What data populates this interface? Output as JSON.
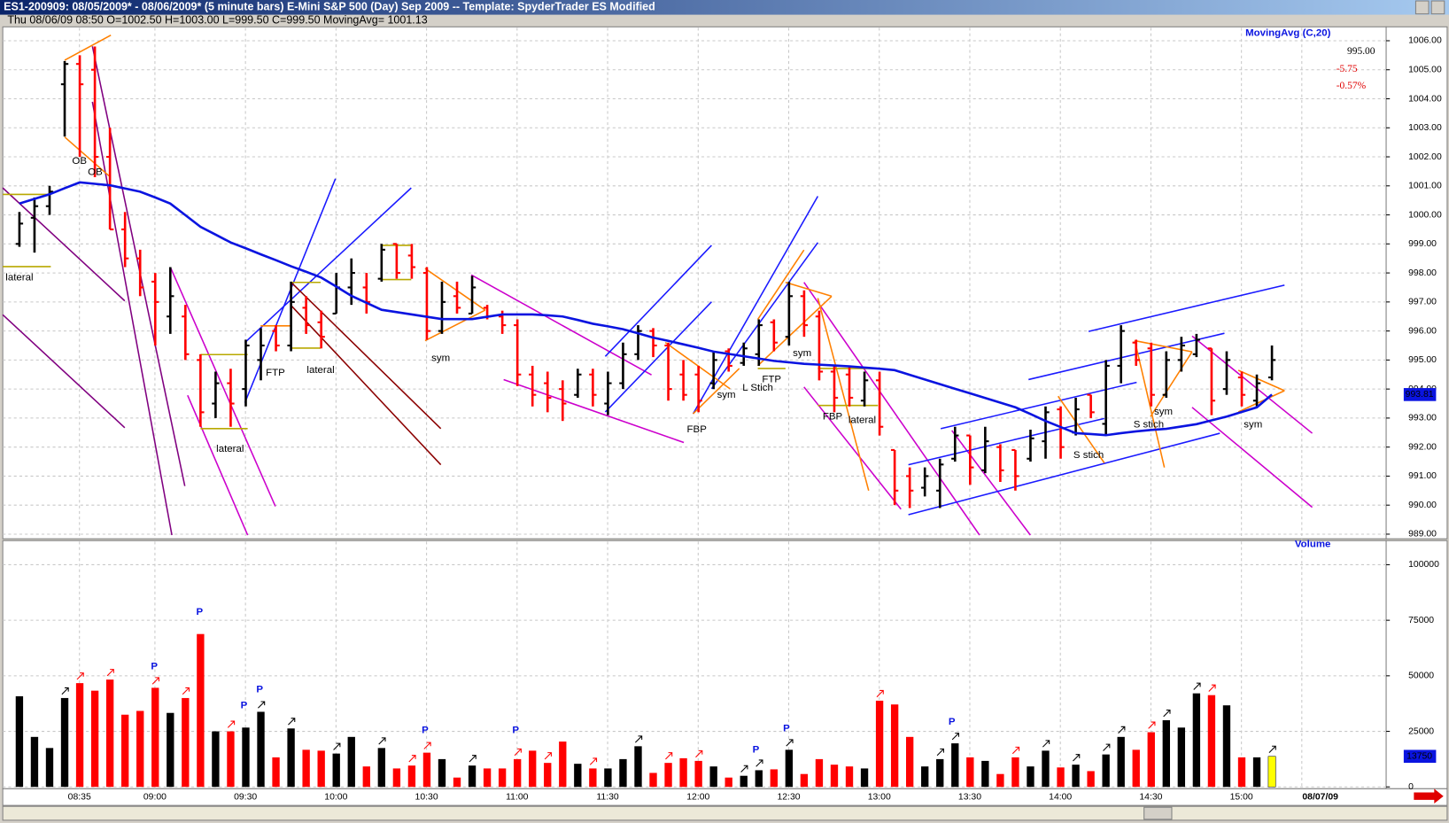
{
  "chart_data": [
    {
      "type": "ohlc",
      "title": "ES1-200909:  08/05/2009* - 08/06/2009*  (5 minute bars)   E-Mini S&P 500 (Day) Sep 2009  --  Template: SpyderTrader ES Modified",
      "subtitle": "Thu  08/06/09 08:50  O=1002.50  H=1003.00  L=999.50  C=999.50  MovingAvg= 1001.13",
      "categories": [
        null,
        null,
        null,
        "08:35",
        null,
        null,
        null,
        null,
        "09:00",
        null,
        null,
        null,
        null,
        null,
        "09:30",
        null,
        null,
        null,
        null,
        null,
        "10:00",
        null,
        null,
        null,
        null,
        null,
        "10:30",
        null,
        null,
        null,
        null,
        null,
        "11:00",
        null,
        null,
        null,
        null,
        null,
        "11:30",
        null,
        null,
        null,
        null,
        null,
        "12:00",
        null,
        null,
        null,
        null,
        null,
        "12:30",
        null,
        null,
        null,
        null,
        null,
        "13:00",
        null,
        null,
        null,
        null,
        null,
        "13:30",
        null,
        null,
        null,
        null,
        null,
        "14:00",
        null,
        null,
        null,
        null,
        null,
        "14:30",
        null,
        null,
        null,
        null,
        null,
        "15:00",
        null,
        null,
        null
      ],
      "open": [
        999.0,
        999.9,
        1000.3,
        1004.5,
        1005.2,
        1005.0,
        1002.0,
        999.5,
        998.5,
        997.7,
        996.5,
        996.5,
        995.0,
        993.5,
        994.2,
        994.0,
        995.0,
        996.0,
        995.5,
        996.8,
        996.3,
        996.6,
        997.5,
        997.5,
        997.8,
        999.0,
        998.6,
        998.0,
        996.0,
        997.2,
        996.6,
        996.8,
        996.5,
        996.2,
        994.5,
        994.2,
        994.0,
        993.8,
        994.5,
        993.5,
        994.2,
        995.2,
        996.0,
        995.5,
        994.5,
        994.5,
        994.2,
        995.3,
        994.9,
        995.2,
        996.3,
        995.8,
        997.2,
        996.5,
        994.6,
        994.5,
        993.6,
        994.3,
        991.9,
        991.0,
        990.6,
        990.5,
        991.6,
        992.4,
        991.2,
        992.0,
        991.9,
        991.6,
        992.2,
        993.3,
        992.5,
        993.8,
        992.8,
        994.8,
        995.6,
        995.4,
        993.8,
        995.0,
        995.2,
        995.4,
        994.0,
        994.4,
        993.6,
        994.4
      ],
      "high": [
        1000.1,
        1000.6,
        1001.0,
        1005.3,
        1005.5,
        1005.8,
        1003.0,
        1000.1,
        998.8,
        998.0,
        998.2,
        996.9,
        995.2,
        994.6,
        994.7,
        995.7,
        996.1,
        996.2,
        997.7,
        997.2,
        996.7,
        998.0,
        998.5,
        998.0,
        999.0,
        999.0,
        999.0,
        998.2,
        997.7,
        997.7,
        997.9,
        996.9,
        996.7,
        996.4,
        994.8,
        994.6,
        994.3,
        994.7,
        994.7,
        994.6,
        995.6,
        996.2,
        996.1,
        995.6,
        995.0,
        994.8,
        995.3,
        995.4,
        995.6,
        996.4,
        996.4,
        997.7,
        997.4,
        996.7,
        994.8,
        994.8,
        994.6,
        994.6,
        991.9,
        991.3,
        991.3,
        991.6,
        992.7,
        992.4,
        992.7,
        992.1,
        991.9,
        992.6,
        993.4,
        993.4,
        993.7,
        993.8,
        995.0,
        996.2,
        995.7,
        995.6,
        995.3,
        995.8,
        995.9,
        995.4,
        995.3,
        994.6,
        994.5,
        995.5
      ],
      "low": [
        998.9,
        998.7,
        1000.0,
        1002.7,
        1002.0,
        1001.3,
        999.5,
        998.2,
        997.2,
        995.5,
        995.9,
        995.0,
        992.7,
        993.0,
        992.7,
        993.4,
        994.3,
        995.3,
        995.3,
        995.9,
        995.4,
        996.6,
        996.9,
        996.6,
        997.7,
        997.8,
        997.8,
        995.7,
        995.9,
        996.6,
        996.6,
        996.4,
        995.9,
        994.1,
        993.4,
        993.2,
        992.9,
        993.7,
        993.4,
        993.1,
        994.0,
        995.0,
        995.1,
        993.6,
        993.6,
        993.2,
        994.0,
        994.6,
        994.8,
        994.8,
        995.3,
        995.5,
        995.8,
        994.3,
        993.2,
        993.4,
        993.4,
        992.4,
        990.0,
        989.9,
        990.3,
        989.9,
        991.5,
        990.7,
        991.1,
        990.8,
        990.5,
        991.5,
        991.6,
        991.6,
        992.4,
        993.0,
        992.4,
        994.2,
        994.8,
        993.4,
        993.7,
        994.6,
        995.1,
        993.1,
        993.8,
        993.4,
        993.4,
        994.3
      ],
      "close": [
        999.7,
        1000.3,
        1000.8,
        1005.2,
        1004.5,
        1002.0,
        999.5,
        998.5,
        997.5,
        997.0,
        997.2,
        995.2,
        993.2,
        994.2,
        993.5,
        995.5,
        995.5,
        995.5,
        997.0,
        996.2,
        995.8,
        997.5,
        998.0,
        997.0,
        998.8,
        998.0,
        998.2,
        996.0,
        997.0,
        996.8,
        997.5,
        996.5,
        996.2,
        994.5,
        993.8,
        993.7,
        993.5,
        994.5,
        993.8,
        994.2,
        995.2,
        996.0,
        995.5,
        994.0,
        993.8,
        993.6,
        995.0,
        994.8,
        995.4,
        996.2,
        995.6,
        997.2,
        996.2,
        994.6,
        993.7,
        993.7,
        994.3,
        992.7,
        990.5,
        990.5,
        991.0,
        991.4,
        992.4,
        991.3,
        992.2,
        991.2,
        991.0,
        992.3,
        993.2,
        992.0,
        993.3,
        993.2,
        994.8,
        996.0,
        995.0,
        993.8,
        995.0,
        995.5,
        995.7,
        993.6,
        995.0,
        993.8,
        994.2,
        995.0
      ],
      "up_color": "#000000",
      "down_color": "#ff0000",
      "series": [
        {
          "name": "MovingAvg (C,20)",
          "color": "#0a14e0",
          "values": [
            1000.39,
            1000.55,
            1000.71,
            1000.92,
            1001.12,
            1001.07,
            1001.02,
            1000.91,
            1000.8,
            1000.6,
            1000.39,
            999.99,
            999.59,
            999.32,
            999.05,
            998.85,
            998.64,
            998.44,
            998.23,
            998.04,
            997.84,
            997.53,
            997.21,
            996.97,
            996.73,
            996.65,
            996.57,
            996.49,
            996.41,
            996.41,
            996.41,
            996.49,
            996.57,
            996.57,
            996.57,
            996.54,
            996.5,
            996.38,
            996.25,
            996.16,
            996.06,
            995.92,
            995.77,
            995.66,
            995.54,
            995.42,
            995.29,
            995.21,
            995.13,
            995.05,
            994.97,
            994.92,
            994.87,
            994.84,
            994.81,
            994.78,
            994.74,
            994.7,
            994.65,
            994.49,
            994.33,
            994.17,
            994.01,
            993.85,
            993.69,
            993.53,
            993.37,
            993.14,
            992.9,
            992.69,
            992.48,
            992.45,
            992.41,
            992.48,
            992.54,
            992.59,
            992.63,
            992.71,
            992.79,
            992.92,
            993.05,
            993.21,
            993.37,
            993.81
          ]
        }
      ],
      "ma_tag": "993.81",
      "quote": {
        "last": "995.00",
        "change": "-5.75",
        "change_pct": "-0.57%"
      },
      "next_date": "08/07/09",
      "ylim": [
        989,
        1006
      ],
      "yticks": [
        {
          "value": 1006,
          "label": "1006.00"
        },
        {
          "value": 1005,
          "label": "1005.00"
        },
        {
          "value": 1004,
          "label": "1004.00"
        },
        {
          "value": 1003,
          "label": "1003.00"
        },
        {
          "value": 1002,
          "label": "1002.00"
        },
        {
          "value": 1001,
          "label": "1001.00"
        },
        {
          "value": 1000,
          "label": "1000.00"
        },
        {
          "value": 999,
          "label": "999.00"
        },
        {
          "value": 998,
          "label": "998.00"
        },
        {
          "value": 997,
          "label": "997.00"
        },
        {
          "value": 996,
          "label": "996.00"
        },
        {
          "value": 995,
          "label": "995.00"
        },
        {
          "value": 994,
          "label": "994.00"
        },
        {
          "value": 993,
          "label": "993.00"
        },
        {
          "value": 992,
          "label": "992.00"
        },
        {
          "value": 991,
          "label": "991.00"
        },
        {
          "value": 990,
          "label": "990.00"
        },
        {
          "value": 989,
          "label": "989.00"
        }
      ],
      "grid": true,
      "annotations": [
        "OB",
        "OB",
        "lateral",
        "lateral",
        "FTP",
        "lateral",
        "sym",
        "FBP",
        "sym",
        "L Stich",
        "FTP",
        "sym",
        "FBP",
        "lateral",
        "S stich",
        "S stich",
        "sym",
        "sym"
      ]
    },
    {
      "type": "bar",
      "title": "Volume",
      "values": [
        40800,
        22500,
        17500,
        40000,
        46700,
        43300,
        48300,
        32500,
        34200,
        44600,
        33300,
        40000,
        68800,
        25000,
        25000,
        26700,
        33800,
        13300,
        26300,
        16700,
        16300,
        15000,
        22500,
        9200,
        17500,
        8300,
        9600,
        15400,
        12500,
        4200,
        9600,
        8300,
        8300,
        12500,
        16300,
        10800,
        20400,
        10400,
        8300,
        8300,
        12500,
        18300,
        6300,
        10800,
        12900,
        11700,
        9200,
        4200,
        5000,
        7500,
        7900,
        16700,
        5800,
        12500,
        10000,
        9200,
        8300,
        38800,
        37100,
        22500,
        9200,
        12500,
        19600,
        13300,
        11700,
        5800,
        13300,
        9200,
        16300,
        8750,
        10000,
        7100,
        14600,
        22500,
        16700,
        24600,
        30000,
        26700,
        42100,
        41300,
        36700,
        13300,
        13300,
        13750
      ],
      "highlight_color": "#ffff00",
      "last_tag": "13750",
      "ylim": [
        0,
        100000
      ],
      "yticks": [
        0,
        25000,
        50000,
        75000,
        100000
      ],
      "grid": true,
      "annotations": [
        "P",
        "P",
        "P",
        "P",
        "P",
        "P",
        "P",
        "P",
        "P"
      ]
    }
  ]
}
